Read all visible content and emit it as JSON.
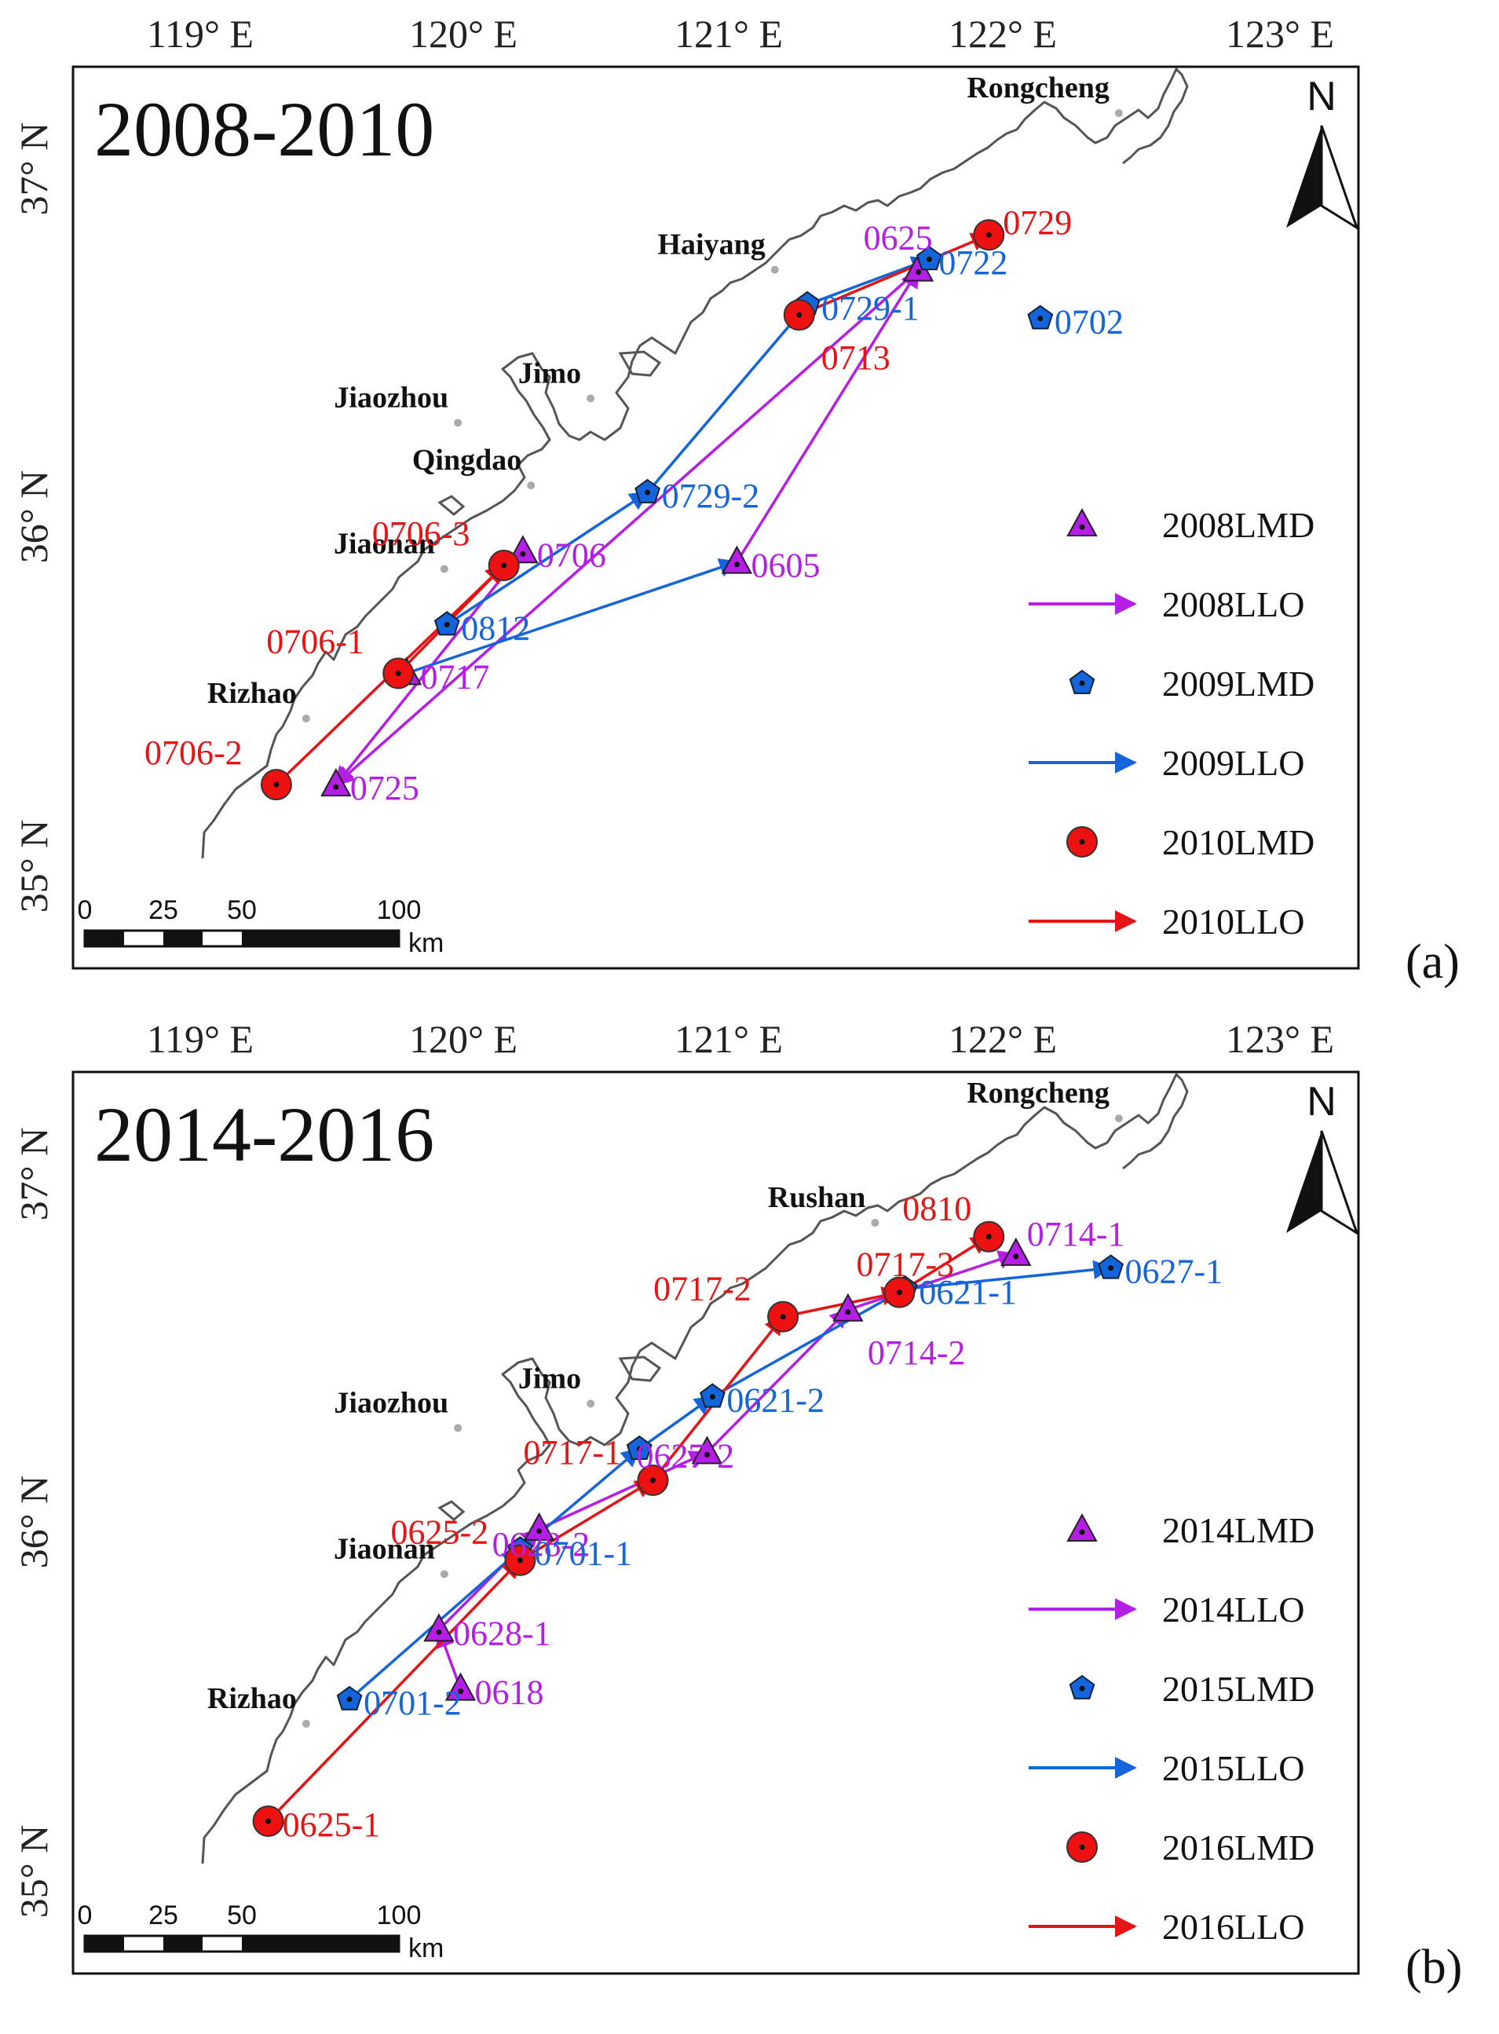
{
  "axes": {
    "lon_labels": [
      "119° E",
      "120° E",
      "121° E",
      "122° E",
      "123° E"
    ],
    "lat_labels": [
      "37° N",
      "36° N",
      "35° N"
    ]
  },
  "colors": {
    "y1": "#b41ee6",
    "y2": "#1464dc",
    "y3": "#e61414",
    "marker_3": "#ee1111",
    "coast": "#555555"
  },
  "scale_bar": {
    "ticks": [
      "0",
      "25",
      "50",
      "100"
    ],
    "unit": "km"
  },
  "north_arrow": {
    "label": "N"
  },
  "panels": [
    {
      "id": "a",
      "title": "2008-2010",
      "label": "(a)",
      "cities": [
        "Rongcheng",
        "Haiyang",
        "Jimo",
        "Jiaozhou",
        "Qingdao",
        "Jiaonan",
        "Rizhao"
      ],
      "legend": [
        "2008LMD",
        "2008LLO",
        "2009LMD",
        "2009LLO",
        "2010LMD",
        "2010LLO"
      ],
      "events": [
        {
          "series": 1,
          "label": "0625",
          "lon": 121.68,
          "lat": 36.71
        },
        {
          "series": 1,
          "label": "0706",
          "lon": 120.22,
          "lat": 35.9
        },
        {
          "series": 1,
          "label": "0717",
          "lon": 119.79,
          "lat": 35.55
        },
        {
          "series": 1,
          "label": "0725",
          "lon": 119.53,
          "lat": 35.23
        },
        {
          "series": 1,
          "label": "0605",
          "lon": 121.01,
          "lat": 35.87
        },
        {
          "series": 2,
          "label": "0722",
          "lon": 121.72,
          "lat": 36.74
        },
        {
          "series": 2,
          "label": "0702",
          "lon": 122.13,
          "lat": 36.57
        },
        {
          "series": 2,
          "label": "0729-1",
          "lon": 121.27,
          "lat": 36.61
        },
        {
          "series": 2,
          "label": "0729-2",
          "lon": 120.68,
          "lat": 36.07
        },
        {
          "series": 2,
          "label": "0812",
          "lon": 119.94,
          "lat": 35.69
        },
        {
          "series": 3,
          "label": "0729",
          "lon": 121.94,
          "lat": 36.81
        },
        {
          "series": 3,
          "label": "0713",
          "lon": 121.24,
          "lat": 36.58
        },
        {
          "series": 3,
          "label": "0706-3",
          "lon": 120.15,
          "lat": 35.86
        },
        {
          "series": 3,
          "label": "0706-1",
          "lon": 119.76,
          "lat": 35.55
        },
        {
          "series": 3,
          "label": "0706-2",
          "lon": 119.31,
          "lat": 35.23
        }
      ]
    },
    {
      "id": "b",
      "title": "2014-2016",
      "label": "(b)",
      "cities": [
        "Rongcheng",
        "Rushan",
        "Jimo",
        "Jiaozhou",
        "Jiaonan",
        "Rizhao"
      ],
      "legend": [
        "2014LMD",
        "2014LLO",
        "2015LMD",
        "2015LLO",
        "2016LMD",
        "2016LLO"
      ],
      "events": [
        {
          "series": 1,
          "label": "0714-1",
          "lon": 122.04,
          "lat": 36.77
        },
        {
          "series": 1,
          "label": "0714-2",
          "lon": 121.42,
          "lat": 36.61
        },
        {
          "series": 1,
          "label": "0627-2",
          "lon": 120.9,
          "lat": 36.2
        },
        {
          "series": 1,
          "label": "0628-2",
          "lon": 120.28,
          "lat": 35.98
        },
        {
          "series": 1,
          "label": "0628-1",
          "lon": 119.91,
          "lat": 35.69
        },
        {
          "series": 1,
          "label": "0618",
          "lon": 119.99,
          "lat": 35.52
        },
        {
          "series": 2,
          "label": "0627-1",
          "lon": 122.39,
          "lat": 36.73
        },
        {
          "series": 2,
          "label": "0621-1",
          "lon": 121.63,
          "lat": 36.67
        },
        {
          "series": 2,
          "label": "0621-2",
          "lon": 120.92,
          "lat": 36.36
        },
        {
          "series": 2,
          "label": "",
          "lon": 120.65,
          "lat": 36.21
        },
        {
          "series": 2,
          "label": "0701-1",
          "lon": 120.21,
          "lat": 35.92
        },
        {
          "series": 2,
          "label": "0701-2",
          "lon": 119.58,
          "lat": 35.49
        },
        {
          "series": 3,
          "label": "0810",
          "lon": 121.94,
          "lat": 36.82
        },
        {
          "series": 3,
          "label": "0717-2",
          "lon": 121.18,
          "lat": 36.59
        },
        {
          "series": 3,
          "label": "0717-3",
          "lon": 121.61,
          "lat": 36.66
        },
        {
          "series": 3,
          "label": "0717-1",
          "lon": 120.7,
          "lat": 36.12
        },
        {
          "series": 3,
          "label": "0625-2",
          "lon": 120.21,
          "lat": 35.89
        },
        {
          "series": 3,
          "label": "0625-1",
          "lon": 119.28,
          "lat": 35.14
        }
      ]
    }
  ]
}
